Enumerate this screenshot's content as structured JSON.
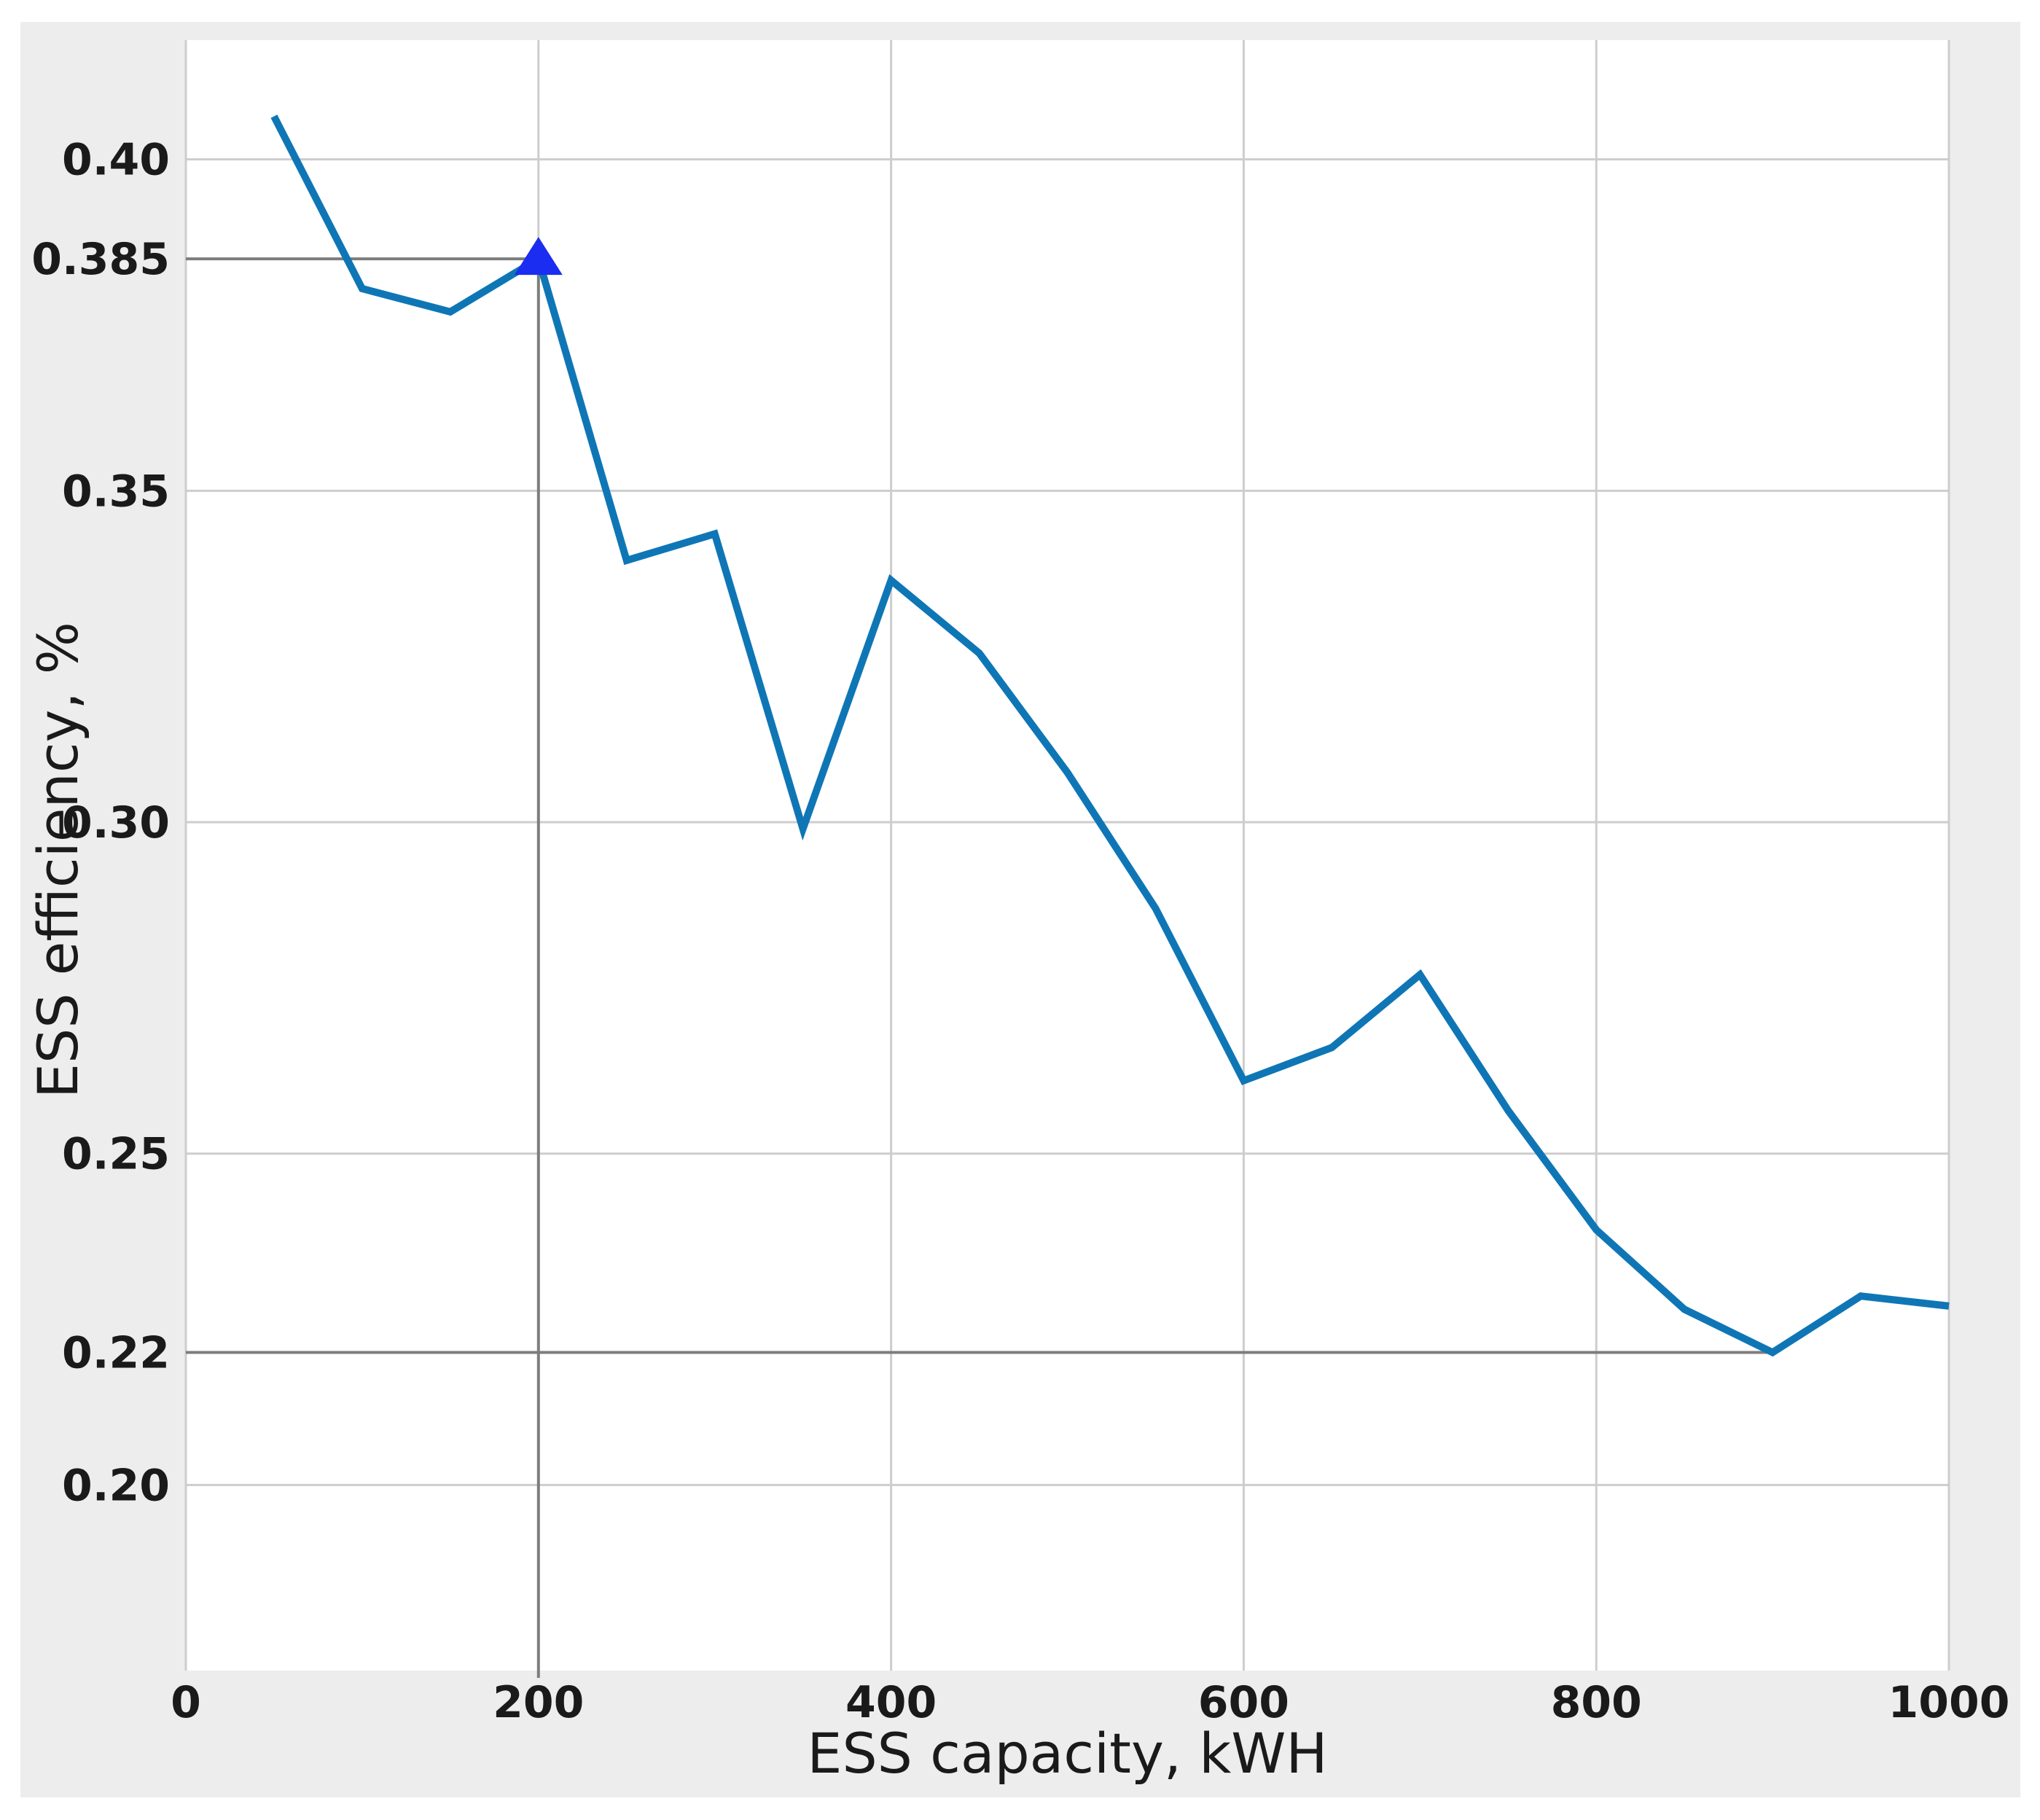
{
  "chart_data": {
    "type": "line",
    "title": "",
    "xlabel": "ESS capacity, kWH",
    "ylabel": "ESS efficiency, %",
    "x": [
      50,
      100,
      150,
      200,
      250,
      300,
      350,
      400,
      450,
      500,
      550,
      600,
      650,
      700,
      750,
      800,
      850,
      900,
      950,
      1000
    ],
    "y": [
      0.4065,
      0.3805,
      0.377,
      0.385,
      0.3395,
      0.3435,
      0.299,
      0.3365,
      0.3255,
      0.3075,
      0.287,
      0.261,
      0.266,
      0.277,
      0.2565,
      0.2385,
      0.2265,
      0.22,
      0.2285,
      0.227
    ],
    "xlim": [
      0,
      1000
    ],
    "ylim": [
      0.172,
      0.418
    ],
    "x_ticks": [
      0,
      200,
      400,
      600,
      800,
      1000
    ],
    "x_tick_labels": [
      "0",
      "200",
      "400",
      "600",
      "800",
      "1000"
    ],
    "y_ticks": [
      {
        "value": 0.4,
        "label": "0.40",
        "grid": true
      },
      {
        "value": 0.385,
        "label": "0.385",
        "grid": false
      },
      {
        "value": 0.35,
        "label": "0.35",
        "grid": true
      },
      {
        "value": 0.3,
        "label": "0.30",
        "grid": true
      },
      {
        "value": 0.25,
        "label": "0.25",
        "grid": true
      },
      {
        "value": 0.22,
        "label": "0.22",
        "grid": false
      },
      {
        "value": 0.2,
        "label": "0.20",
        "grid": true
      }
    ],
    "grid": true,
    "legend": "none",
    "marker": {
      "x": 200,
      "y": 0.385,
      "shape": "triangle-up",
      "color": "#1b2df0"
    },
    "reference_lines": [
      {
        "type": "h",
        "value": 0.385,
        "from_x": 0,
        "to_x": 200
      },
      {
        "type": "v",
        "at_x": 200,
        "from_y": 0.385,
        "to_bottom": true
      },
      {
        "type": "h",
        "value": 0.22,
        "from_x": 0,
        "to_x": 900
      }
    ],
    "colors": {
      "series": "#0f76b6",
      "marker": "#1b2df0",
      "grid": "#cdcdcd",
      "reference": "#7d7d7d",
      "plot_bg": "#ffffff",
      "figure_bg": "#ededed",
      "page_bg": "#ffffff",
      "text": "#1a1a1a"
    }
  }
}
